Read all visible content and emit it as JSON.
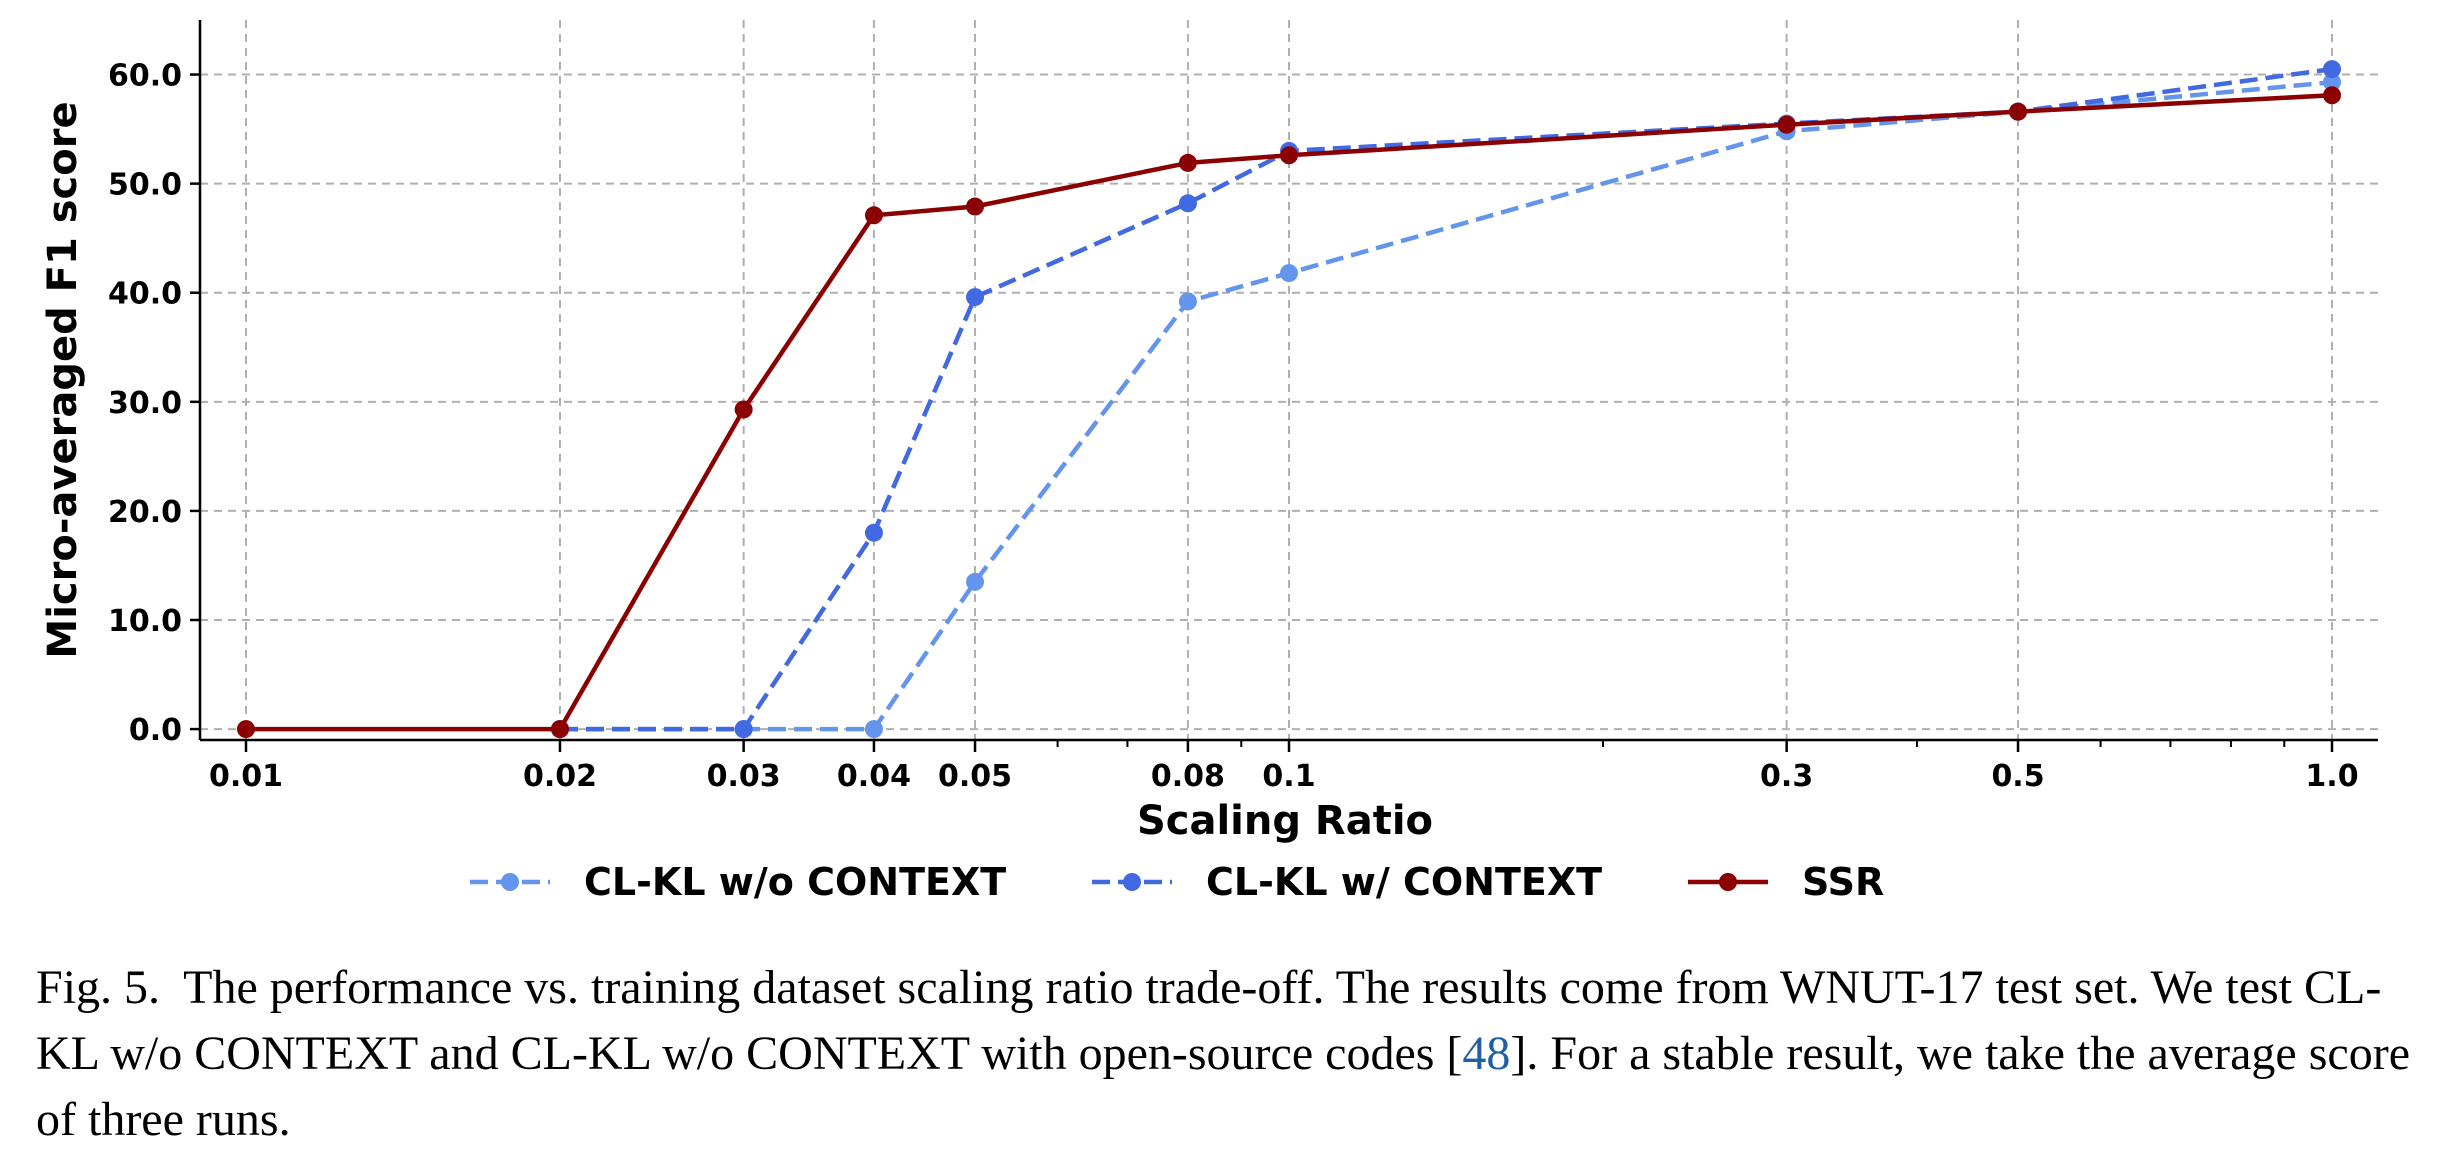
{
  "chart_data": {
    "type": "line",
    "xlabel": "Scaling Ratio",
    "ylabel": "Micro-averaged F1 score",
    "xscale": "log",
    "xlim": [
      0.01,
      1.0
    ],
    "ylim": [
      -1,
      65
    ],
    "x_ticks": [
      0.01,
      0.02,
      0.03,
      0.04,
      0.05,
      0.08,
      0.1,
      0.3,
      0.5,
      1.0
    ],
    "x_tick_labels": [
      "0.01",
      "0.02",
      "0.03",
      "0.04",
      "0.05",
      "0.08",
      "0.1",
      "0.3",
      "0.5",
      "1.0"
    ],
    "y_ticks": [
      0,
      10,
      20,
      30,
      40,
      50,
      60
    ],
    "y_tick_labels": [
      "0.0",
      "10.0",
      "20.0",
      "30.0",
      "40.0",
      "50.0",
      "60.0"
    ],
    "grid": true,
    "legend_position": "bottom",
    "series": [
      {
        "name": "CL-KL w/o CONTEXT",
        "color": "#6495ed",
        "linestyle": "dashed",
        "marker": "circle",
        "points": [
          [
            0.02,
            0.0
          ],
          [
            0.03,
            0.0
          ],
          [
            0.04,
            0.0
          ],
          [
            0.05,
            13.5
          ],
          [
            0.08,
            39.2
          ],
          [
            0.1,
            41.8
          ],
          [
            0.3,
            54.8
          ],
          [
            0.5,
            56.6
          ],
          [
            1.0,
            59.3
          ]
        ]
      },
      {
        "name": "CL-KL w/ CONTEXT",
        "color": "#4169e1",
        "linestyle": "dashed",
        "marker": "circle",
        "points": [
          [
            0.02,
            0.0
          ],
          [
            0.03,
            0.0
          ],
          [
            0.04,
            18.0
          ],
          [
            0.05,
            39.6
          ],
          [
            0.08,
            48.2
          ],
          [
            0.1,
            53.0
          ],
          [
            0.3,
            55.5
          ],
          [
            0.5,
            56.6
          ],
          [
            1.0,
            60.5
          ]
        ]
      },
      {
        "name": "SSR",
        "color": "#8b0000",
        "linestyle": "solid",
        "marker": "circle",
        "points": [
          [
            0.01,
            0.0
          ],
          [
            0.02,
            0.0
          ],
          [
            0.03,
            29.3
          ],
          [
            0.04,
            47.1
          ],
          [
            0.05,
            47.9
          ],
          [
            0.08,
            51.9
          ],
          [
            0.1,
            52.6
          ],
          [
            0.3,
            55.4
          ],
          [
            0.5,
            56.6
          ],
          [
            1.0,
            58.1
          ]
        ]
      }
    ]
  },
  "caption": {
    "label": "Fig. 5.",
    "text_before_ref": "The performance vs. training dataset scaling ratio trade-off. The results come from WNUT-17 test set. We test CL-KL w/o CONTEXT and CL-KL w/o CONTEXT with open-source codes [",
    "ref": "48",
    "text_after_ref": "]. For a stable result, we take the average score of three runs."
  }
}
